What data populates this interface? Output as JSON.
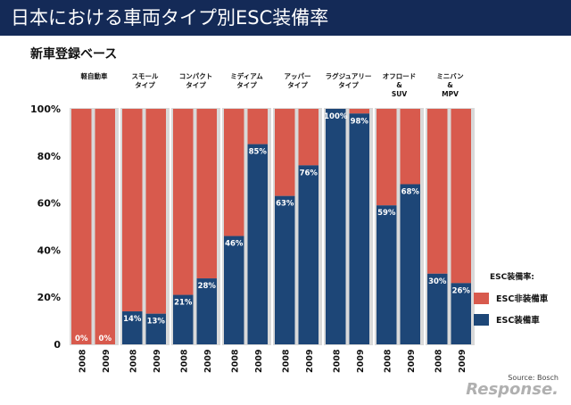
{
  "header": {
    "title": "日本における車両タイプ別ESC装備率"
  },
  "subtitle": "新車登録ベース",
  "source": "Source: Bosch",
  "logo_text": "Response.",
  "colors": {
    "equipped": "#1d4677",
    "not_equipped": "#d85a4d",
    "title_bg": "#142a57"
  },
  "chart_data": {
    "type": "bar",
    "stacked": true,
    "groups": [
      {
        "name": [
          "軽自動車"
        ],
        "bars": [
          {
            "year": "2008",
            "value": 0,
            "label": "0%"
          },
          {
            "year": "2009",
            "value": 0,
            "label": "0%"
          }
        ]
      },
      {
        "name": [
          "スモール",
          "タイプ"
        ],
        "bars": [
          {
            "year": "2008",
            "value": 14,
            "label": "14%"
          },
          {
            "year": "2009",
            "value": 13,
            "label": "13%"
          }
        ]
      },
      {
        "name": [
          "コンパクト",
          "タイプ"
        ],
        "bars": [
          {
            "year": "2008",
            "value": 21,
            "label": "21%"
          },
          {
            "year": "2009",
            "value": 28,
            "label": "28%"
          }
        ]
      },
      {
        "name": [
          "ミディアム",
          "タイプ"
        ],
        "bars": [
          {
            "year": "2008",
            "value": 46,
            "label": "46%"
          },
          {
            "year": "2009",
            "value": 85,
            "label": "85%"
          }
        ]
      },
      {
        "name": [
          "アッパー",
          "タイプ"
        ],
        "bars": [
          {
            "year": "2008",
            "value": 63,
            "label": "63%"
          },
          {
            "year": "2009",
            "value": 76,
            "label": "76%"
          }
        ]
      },
      {
        "name": [
          "ラグジュアリー",
          "タイプ"
        ],
        "bars": [
          {
            "year": "2008",
            "value": 100,
            "label": "100%"
          },
          {
            "year": "2009",
            "value": 98,
            "label": "98%"
          }
        ]
      },
      {
        "name": [
          "オフロード",
          "&",
          "SUV"
        ],
        "bars": [
          {
            "year": "2008",
            "value": 59,
            "label": "59%"
          },
          {
            "year": "2009",
            "value": 68,
            "label": "68%"
          }
        ]
      },
      {
        "name": [
          "ミニバン",
          "&",
          "MPV"
        ],
        "bars": [
          {
            "year": "2008",
            "value": 30,
            "label": "30%"
          },
          {
            "year": "2009",
            "value": 26,
            "label": "26%"
          }
        ]
      }
    ],
    "y_ticks": [
      "0",
      "20%",
      "40%",
      "60%",
      "80%",
      "100%"
    ],
    "ylim": [
      0,
      100
    ],
    "legend": {
      "title": "ESC装備率:",
      "items": [
        {
          "label": "ESC非装備車",
          "key": "not_equipped"
        },
        {
          "label": "ESC装備車",
          "key": "equipped"
        }
      ],
      "position": "right"
    }
  }
}
